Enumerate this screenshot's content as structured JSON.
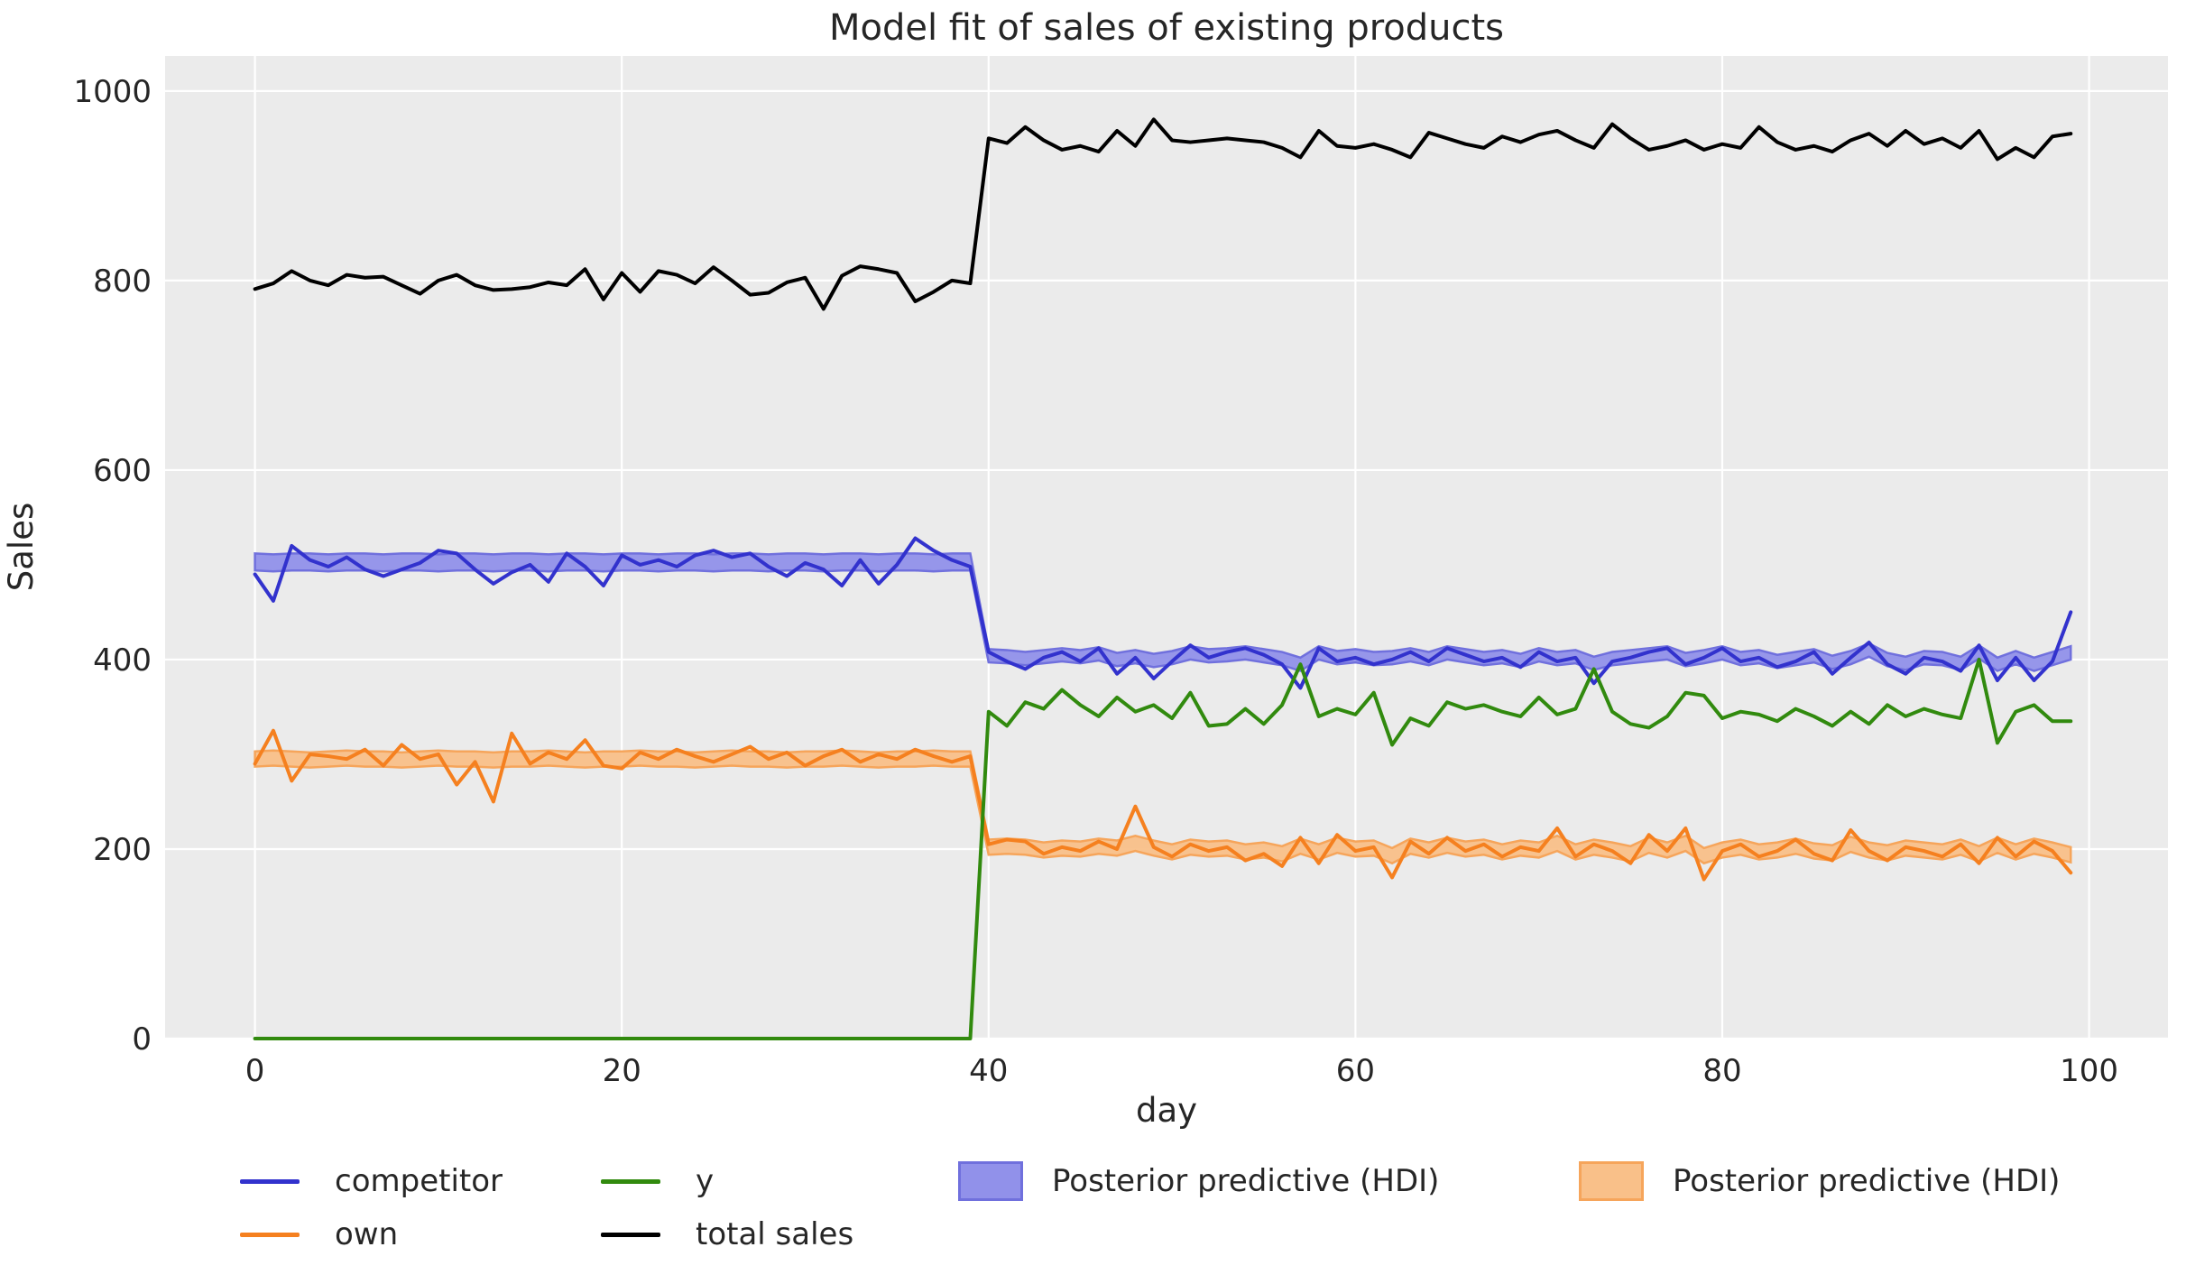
{
  "title": "Model fit of sales of existing products",
  "chart_data": {
    "type": "line",
    "title": "Model fit of sales of existing products",
    "xlabel": "day",
    "ylabel": "Sales",
    "x_ticks": [
      0,
      20,
      40,
      60,
      80,
      100
    ],
    "y_ticks": [
      0,
      200,
      400,
      600,
      800,
      1000
    ],
    "xlim": [
      -4.9,
      104.3
    ],
    "ylim": [
      0,
      1037
    ],
    "grid": true,
    "n_days": 100,
    "changepoint_day": 40,
    "style": {
      "plot_background": "#ebebeb",
      "grid_color": "#ffffff",
      "text_color": "#262626"
    },
    "series": [
      {
        "name": "competitor",
        "color": "#3232cd",
        "values": [
          490,
          462,
          520,
          505,
          498,
          508,
          495,
          488,
          495,
          502,
          515,
          512,
          495,
          480,
          492,
          500,
          482,
          512,
          498,
          478,
          510,
          500,
          505,
          498,
          510,
          515,
          508,
          512,
          498,
          488,
          502,
          495,
          478,
          505,
          480,
          500,
          528,
          515,
          505,
          498,
          408,
          398,
          390,
          402,
          408,
          398,
          412,
          385,
          402,
          380,
          398,
          415,
          402,
          408,
          412,
          405,
          395,
          370,
          412,
          398,
          402,
          395,
          400,
          408,
          398,
          412,
          405,
          398,
          402,
          392,
          408,
          398,
          402,
          375,
          398,
          402,
          408,
          412,
          395,
          402,
          412,
          398,
          402,
          392,
          398,
          408,
          385,
          402,
          418,
          395,
          385,
          402,
          398,
          388,
          415,
          378,
          402,
          378,
          398,
          450
        ]
      },
      {
        "name": "own",
        "color": "#f5801f",
        "values": [
          290,
          325,
          272,
          300,
          298,
          295,
          305,
          288,
          310,
          295,
          300,
          268,
          292,
          250,
          322,
          290,
          302,
          295,
          315,
          288,
          285,
          302,
          295,
          305,
          298,
          292,
          300,
          308,
          295,
          302,
          288,
          298,
          305,
          292,
          300,
          295,
          305,
          298,
          292,
          298,
          205,
          210,
          208,
          195,
          202,
          198,
          208,
          200,
          245,
          202,
          192,
          205,
          198,
          202,
          188,
          195,
          182,
          212,
          185,
          215,
          198,
          202,
          170,
          208,
          195,
          212,
          198,
          205,
          192,
          202,
          198,
          222,
          192,
          205,
          198,
          185,
          215,
          198,
          222,
          168,
          198,
          205,
          192,
          198,
          210,
          195,
          188,
          220,
          198,
          188,
          202,
          198,
          192,
          205,
          185,
          212,
          192,
          208,
          198,
          175
        ]
      },
      {
        "name": "y",
        "color": "#318a0e",
        "values": [
          0,
          0,
          0,
          0,
          0,
          0,
          0,
          0,
          0,
          0,
          0,
          0,
          0,
          0,
          0,
          0,
          0,
          0,
          0,
          0,
          0,
          0,
          0,
          0,
          0,
          0,
          0,
          0,
          0,
          0,
          0,
          0,
          0,
          0,
          0,
          0,
          0,
          0,
          0,
          0,
          345,
          330,
          355,
          348,
          368,
          352,
          340,
          360,
          345,
          352,
          338,
          365,
          330,
          332,
          348,
          332,
          352,
          395,
          340,
          348,
          342,
          365,
          310,
          338,
          330,
          355,
          348,
          352,
          345,
          340,
          360,
          342,
          348,
          390,
          345,
          332,
          328,
          340,
          365,
          362,
          338,
          345,
          342,
          335,
          348,
          340,
          330,
          345,
          332,
          352,
          340,
          348,
          342,
          338,
          400,
          312,
          345,
          352,
          335,
          335
        ]
      },
      {
        "name": "total sales",
        "color": "#000000",
        "values": [
          791,
          797,
          810,
          800,
          795,
          806,
          803,
          804,
          795,
          786,
          800,
          806,
          795,
          790,
          791,
          793,
          798,
          795,
          812,
          780,
          808,
          788,
          810,
          806,
          797,
          814,
          800,
          785,
          787,
          798,
          803,
          770,
          805,
          815,
          812,
          808,
          778,
          788,
          800,
          797,
          950,
          945,
          962,
          948,
          938,
          942,
          936,
          958,
          942,
          970,
          948,
          946,
          948,
          950,
          948,
          946,
          940,
          930,
          958,
          942,
          940,
          944,
          938,
          930,
          956,
          950,
          944,
          940,
          952,
          946,
          954,
          958,
          948,
          940,
          965,
          950,
          938,
          942,
          948,
          938,
          944,
          940,
          962,
          946,
          938,
          942,
          936,
          948,
          955,
          942,
          958,
          944,
          950,
          940,
          958,
          928,
          940,
          930,
          952,
          955
        ]
      }
    ],
    "bands": [
      {
        "name": "Posterior predictive (HDI)",
        "fill": "#9191ea",
        "edge": "#7070dd",
        "half_width_pre": 9,
        "half_width_post": 7,
        "center": [
          503,
          502,
          503,
          503,
          502,
          503,
          503,
          502,
          503,
          503,
          502,
          503,
          503,
          502,
          503,
          503,
          502,
          503,
          503,
          502,
          503,
          503,
          502,
          503,
          503,
          502,
          503,
          503,
          502,
          503,
          503,
          502,
          503,
          503,
          502,
          503,
          503,
          502,
          503,
          503,
          404,
          403,
          401,
          403,
          405,
          403,
          406,
          400,
          403,
          399,
          402,
          407,
          404,
          405,
          407,
          404,
          401,
          395,
          407,
          402,
          404,
          401,
          402,
          405,
          401,
          407,
          404,
          401,
          403,
          399,
          405,
          401,
          403,
          396,
          401,
          403,
          405,
          407,
          400,
          403,
          407,
          401,
          403,
          398,
          401,
          404,
          397,
          402,
          410,
          400,
          396,
          402,
          401,
          396,
          408,
          395,
          402,
          395,
          401,
          407
        ]
      },
      {
        "name": "Posterior predictive (HDI)",
        "fill": "#f9c089",
        "edge": "#f6a55b",
        "half_width_pre": 8,
        "half_width_post": 8,
        "center": [
          295,
          296,
          295,
          294,
          295,
          296,
          295,
          295,
          294,
          295,
          296,
          295,
          295,
          294,
          295,
          295,
          296,
          295,
          294,
          295,
          295,
          296,
          295,
          295,
          294,
          295,
          296,
          295,
          295,
          294,
          295,
          295,
          296,
          295,
          294,
          295,
          295,
          296,
          295,
          295,
          202,
          203,
          202,
          199,
          201,
          200,
          203,
          201,
          206,
          201,
          197,
          202,
          200,
          201,
          197,
          199,
          195,
          203,
          197,
          204,
          200,
          201,
          193,
          203,
          199,
          204,
          200,
          202,
          197,
          201,
          199,
          206,
          197,
          202,
          199,
          195,
          204,
          199,
          206,
          193,
          199,
          202,
          197,
          199,
          203,
          198,
          196,
          205,
          199,
          196,
          201,
          199,
          197,
          202,
          195,
          204,
          197,
          203,
          199,
          194
        ]
      }
    ],
    "legend": {
      "position": "below",
      "entries": [
        {
          "label": "competitor",
          "swatch": "line",
          "color": "#3232cd",
          "col": 1,
          "row": 1
        },
        {
          "label": "own",
          "swatch": "line",
          "color": "#f5801f",
          "col": 1,
          "row": 2
        },
        {
          "label": "y",
          "swatch": "line",
          "color": "#318a0e",
          "col": 2,
          "row": 1
        },
        {
          "label": "total sales",
          "swatch": "line",
          "color": "#000000",
          "col": 2,
          "row": 2
        },
        {
          "label": "Posterior predictive (HDI)",
          "swatch": "patch",
          "fill": "#9191ea",
          "edge": "#7070dd",
          "col": 3,
          "row": 1
        },
        {
          "label": "Posterior predictive (HDI)",
          "swatch": "patch",
          "fill": "#f9c089",
          "edge": "#f6a55b",
          "col": 4,
          "row": 1
        }
      ]
    }
  }
}
